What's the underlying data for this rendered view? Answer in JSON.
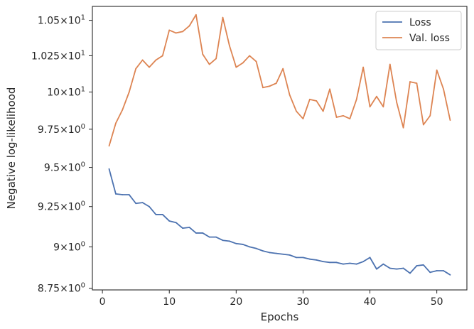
{
  "chart_data": {
    "type": "line",
    "xlabel": "Epochs",
    "ylabel": "Negative log-likelihood",
    "xlim": [
      -1.5,
      54.5
    ],
    "ylim": [
      8.74,
      10.6
    ],
    "yscale": "log",
    "grid": false,
    "legend_position": "top-right",
    "x_ticks": [
      {
        "value": 0,
        "label": "0"
      },
      {
        "value": 10,
        "label": "10"
      },
      {
        "value": 20,
        "label": "20"
      },
      {
        "value": 30,
        "label": "30"
      },
      {
        "value": 40,
        "label": "40"
      },
      {
        "value": 50,
        "label": "50"
      }
    ],
    "y_ticks": [
      {
        "value": 8.75,
        "mant": "8.75",
        "exp": "0"
      },
      {
        "value": 9.0,
        "mant": "9",
        "exp": "0"
      },
      {
        "value": 9.25,
        "mant": "9.25",
        "exp": "0"
      },
      {
        "value": 9.5,
        "mant": "9.5",
        "exp": "0"
      },
      {
        "value": 9.75,
        "mant": "9.75",
        "exp": "0"
      },
      {
        "value": 10.0,
        "mant": "10",
        "exp": "1"
      },
      {
        "value": 10.25,
        "mant": "1.025",
        "exp": "1"
      },
      {
        "value": 10.5,
        "mant": "1.05",
        "exp": "1"
      }
    ],
    "x": [
      1,
      2,
      3,
      4,
      5,
      6,
      7,
      8,
      9,
      10,
      11,
      12,
      13,
      14,
      15,
      16,
      17,
      18,
      19,
      20,
      21,
      22,
      23,
      24,
      25,
      26,
      27,
      28,
      29,
      30,
      31,
      32,
      33,
      34,
      35,
      36,
      37,
      38,
      39,
      40,
      41,
      42,
      43,
      44,
      45,
      46,
      47,
      48,
      49,
      50,
      51,
      52
    ],
    "series": [
      {
        "name": "Loss",
        "color": "#4c72b0",
        "values": [
          9.49,
          9.33,
          9.325,
          9.325,
          9.27,
          9.275,
          9.25,
          9.2,
          9.2,
          9.16,
          9.15,
          9.115,
          9.12,
          9.085,
          9.085,
          9.06,
          9.06,
          9.04,
          9.035,
          9.02,
          9.015,
          9.0,
          8.99,
          8.975,
          8.965,
          8.96,
          8.955,
          8.95,
          8.935,
          8.935,
          8.925,
          8.92,
          8.91,
          8.905,
          8.905,
          8.895,
          8.9,
          8.895,
          8.91,
          8.935,
          8.865,
          8.895,
          8.87,
          8.865,
          8.87,
          8.84,
          8.885,
          8.89,
          8.845,
          8.855,
          8.855,
          8.83
        ]
      },
      {
        "name": "Val. loss",
        "color": "#dd8452",
        "values": [
          9.64,
          9.79,
          9.88,
          10.0,
          10.16,
          10.22,
          10.17,
          10.22,
          10.25,
          10.43,
          10.41,
          10.42,
          10.46,
          10.54,
          10.26,
          10.19,
          10.23,
          10.52,
          10.32,
          10.17,
          10.2,
          10.25,
          10.21,
          10.03,
          10.04,
          10.06,
          10.16,
          9.98,
          9.87,
          9.82,
          9.95,
          9.94,
          9.87,
          10.02,
          9.83,
          9.84,
          9.82,
          9.95,
          10.17,
          9.9,
          9.97,
          9.9,
          10.19,
          9.93,
          9.76,
          10.07,
          10.06,
          9.78,
          9.84,
          10.15,
          10.02,
          9.81
        ]
      }
    ]
  }
}
